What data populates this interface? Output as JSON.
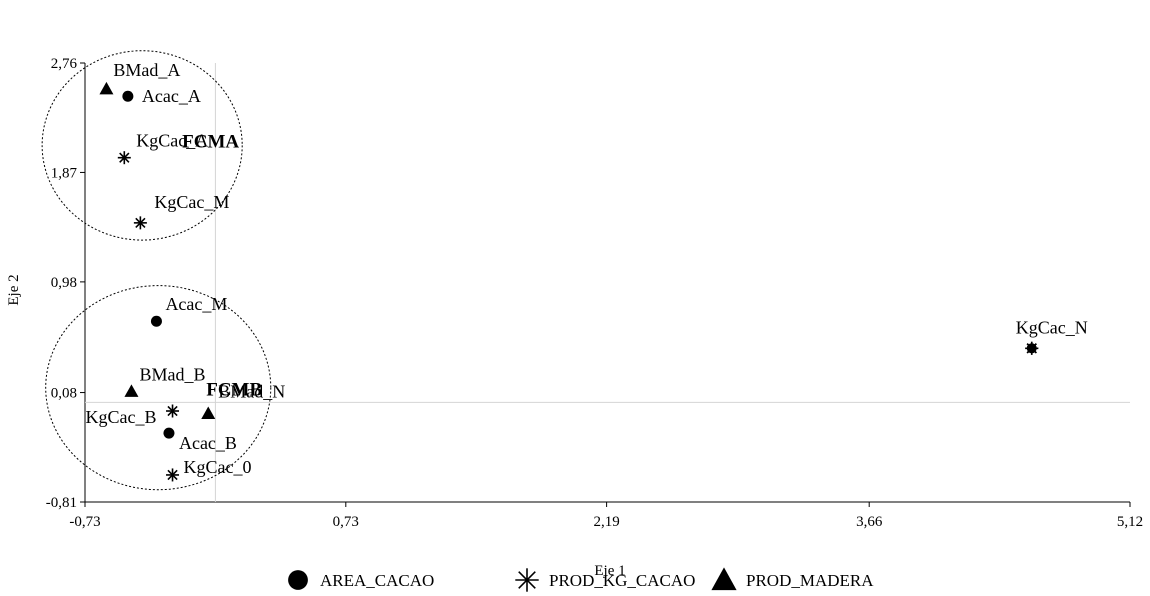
{
  "chart_data": {
    "type": "scatter",
    "title": "",
    "xlabel": "Eje 1",
    "ylabel": "Eje 2",
    "xlim": [
      -0.73,
      5.12
    ],
    "ylim": [
      -0.81,
      2.76
    ],
    "xticks": [
      "-0,73",
      "0,73",
      "2,19",
      "3,66",
      "5,12"
    ],
    "yticks": [
      "-0,81",
      "0,08",
      "0,98",
      "1,87",
      "2,76"
    ],
    "grid": false,
    "legend_position": "bottom",
    "reference_lines": {
      "x": 0,
      "y": 0
    },
    "series": [
      {
        "name": "AREA_CACAO",
        "marker": "circle",
        "points": [
          {
            "label": "Acac_A",
            "x": -0.49,
            "y": 2.49
          },
          {
            "label": "Acac_M",
            "x": -0.33,
            "y": 0.66
          },
          {
            "label": "Acac_B",
            "x": -0.26,
            "y": -0.25
          }
        ]
      },
      {
        "name": "PROD_KG_CACAO",
        "marker": "asterisk",
        "points": [
          {
            "label": "KgCac_A",
            "x": -0.51,
            "y": 1.99
          },
          {
            "label": "KgCac_M",
            "x": -0.42,
            "y": 1.46
          },
          {
            "label": "KgCac_B",
            "x": -0.24,
            "y": -0.07
          },
          {
            "label": "KgCac_0",
            "x": -0.24,
            "y": -0.59
          },
          {
            "label": "KgCac_N",
            "x": 4.57,
            "y": 0.44
          }
        ]
      },
      {
        "name": "PROD_MADERA",
        "marker": "triangle",
        "points": [
          {
            "label": "BMad_A",
            "x": -0.61,
            "y": 2.55
          },
          {
            "label": "BMad_B",
            "x": -0.47,
            "y": 0.09
          },
          {
            "label": "BMad_N",
            "x": -0.04,
            "y": -0.09
          }
        ]
      }
    ],
    "annotations": [
      {
        "text": "FCMA",
        "cx": -0.41,
        "cy": 2.09,
        "rx": 0.56,
        "ry": 0.77
      },
      {
        "text": "FCMB",
        "cx": -0.32,
        "cy": 0.12,
        "rx": 0.63,
        "ry": 0.83
      }
    ]
  }
}
